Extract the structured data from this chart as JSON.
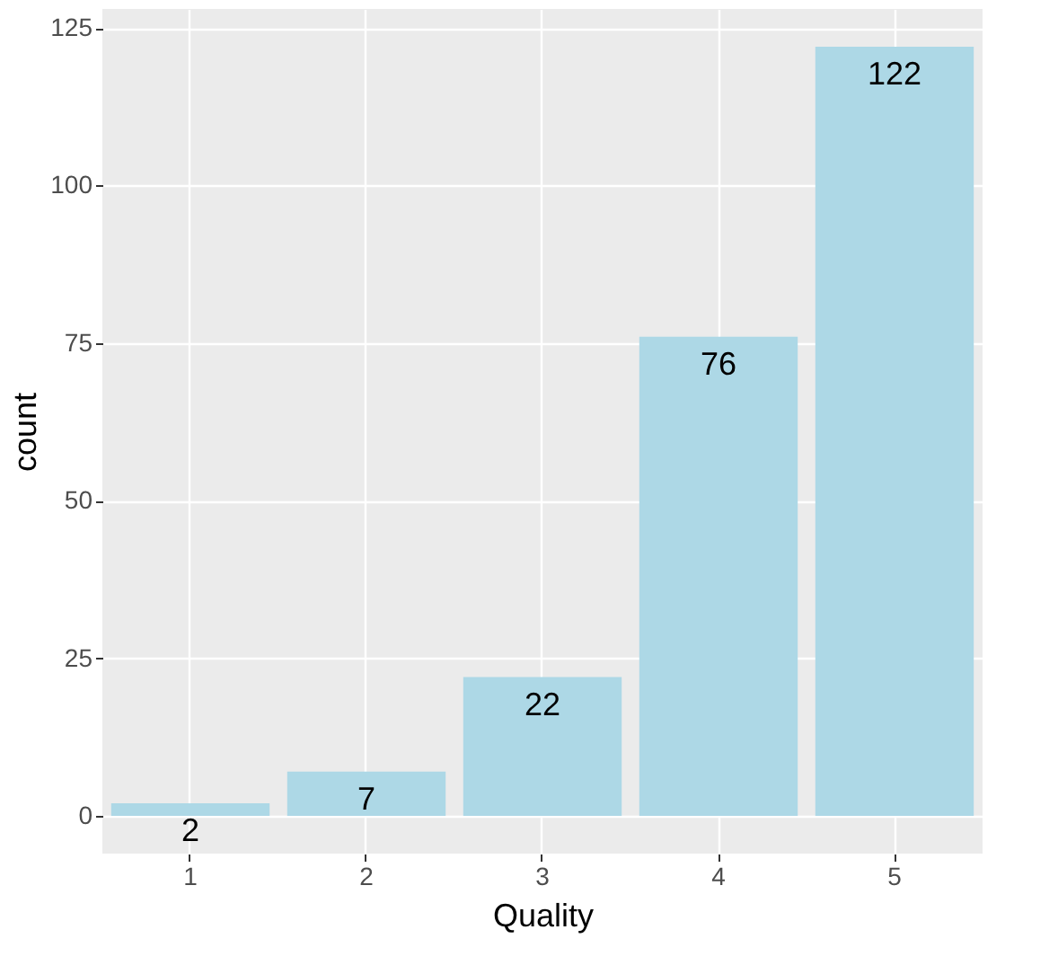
{
  "chart_data": {
    "type": "bar",
    "xlabel": "Quality",
    "ylabel": "count",
    "categories": [
      "1",
      "2",
      "3",
      "4",
      "5"
    ],
    "values": [
      2,
      7,
      22,
      76,
      122
    ],
    "color": "#add8e6",
    "ylim": [
      -6,
      128
    ],
    "yticks": [
      0,
      25,
      50,
      75,
      100,
      125
    ],
    "grid": true,
    "data_labels": true
  }
}
